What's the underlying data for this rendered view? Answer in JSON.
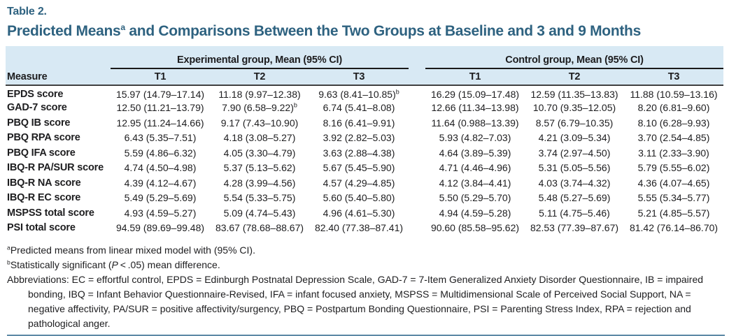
{
  "table_label": "Table 2.",
  "title": {
    "pre": "Predicted Means",
    "sup": "a",
    "post": " and Comparisons Between the Two Groups at Baseline and 3 and 9 Months"
  },
  "header": {
    "measure_label": "Measure",
    "groups": [
      {
        "label": "Experimental group, Mean (95% CI)"
      },
      {
        "label": "Control group, Mean (95% CI)"
      }
    ],
    "timepoints": [
      "T1",
      "T2",
      "T3",
      "T1",
      "T2",
      "T3"
    ]
  },
  "rows": [
    {
      "measure": "EPDS score",
      "values": [
        "15.97 (14.79–17.14)",
        "11.18 (9.97–12.38)",
        "9.63 (8.41–10.85)^b",
        "16.29 (15.09–17.48)",
        "12.59 (11.35–13.83)",
        "11.88 (10.59–13.16)"
      ]
    },
    {
      "measure": "GAD-7 score",
      "values": [
        "12.50 (11.21–13.79)",
        "7.90 (6.58–9.22)^b",
        "6.74 (5.41–8.08)",
        "12.66 (11.34–13.98)",
        "10.70 (9.35–12.05)",
        "8.20 (6.81–9.60)"
      ]
    },
    {
      "measure": "PBQ IB score",
      "values": [
        "12.95 (11.24–14.66)",
        "9.17 (7.43–10.90)",
        "8.16 (6.41–9.91)",
        "11.64 (0.988–13.39)",
        "8.57 (6.79–10.35)",
        "8.10 (6.28–9.93)"
      ]
    },
    {
      "measure": "PBQ RPA score",
      "values": [
        "6.43 (5.35–7.51)",
        "4.18 (3.08–5.27)",
        "3.92 (2.82–5.03)",
        "5.93 (4.82–7.03)",
        "4.21 (3.09–5.34)",
        "3.70 (2.54–4.85)"
      ]
    },
    {
      "measure": "PBQ IFA score",
      "values": [
        "5.59 (4.86–6.32)",
        "4.05 (3.30–4.79)",
        "3.63 (2.88–4.38)",
        "4.64 (3.89–5.39)",
        "3.74 (2.97–4.50)",
        "3.11 (2.33–3.90)"
      ]
    },
    {
      "measure": "IBQ-R PA/SUR score",
      "values": [
        "4.74 (4.50–4.98)",
        "5.37 (5.13–5.62)",
        "5.67 (5.45–5.90)",
        "4.71 (4.46–4.96)",
        "5.31 (5.05–5.56)",
        "5.79 (5.55–6.02)"
      ]
    },
    {
      "measure": "IBQ-R NA score",
      "values": [
        "4.39 (4.12–4.67)",
        "4.28 (3.99–4.56)",
        "4.57 (4.29–4.85)",
        "4.12 (3.84–4.41)",
        "4.03 (3.74–4.32)",
        "4.36 (4.07–4.65)"
      ]
    },
    {
      "measure": "IBQ-R EC score",
      "values": [
        "5.49 (5.29–5.69)",
        "5.54 (5.33–5.75)",
        "5.60 (5.40–5.80)",
        "5.50 (5.29–5.70)",
        "5.48 (5.27–5.69)",
        "5.55 (5.34–5.77)"
      ]
    },
    {
      "measure": "MSPSS total score",
      "values": [
        "4.93 (4.59–5.27)",
        "5.09 (4.74–5.43)",
        "4.96 (4.61–5.30)",
        "4.94 (4.59–5.28)",
        "5.11 (4.75–5.46)",
        "5.21 (4.85–5.57)"
      ]
    },
    {
      "measure": "PSI total score",
      "values": [
        "94.59 (89.69–99.48)",
        "83.67 (78.68–88.67)",
        "82.40 (77.38–87.41)",
        "90.60 (85.58–95.62)",
        "82.53 (77.39–87.67)",
        "81.42 (76.14–86.70)"
      ]
    }
  ],
  "footnotes": {
    "a": {
      "sup": "a",
      "text": "Predicted means from linear mixed model with (95% CI)."
    },
    "b": {
      "sup": "b",
      "pre": "Statistically significant (",
      "italic": "P",
      "post": " < .05) mean difference."
    },
    "abbreviations": "Abbreviations: EC = effortful control, EPDS = Edinburgh Postnatal Depression Scale, GAD-7 = 7-Item Generalized Anxiety Disorder Questionnaire, IB = impaired bonding, IBQ = Infant Behavior Questionnaire-Revised, IFA = infant focused anxiety, MSPSS = Multidimensional Scale of Perceived Social Support, NA = negative affectivity, PA/SUR = positive affectivity/surgency, PBQ = Postpartum Bonding Questionnaire, PSI = Parenting Stress Index, RPA = rejection and pathological anger."
  },
  "colors": {
    "accent_teal": "#2e6280",
    "header_background": "#d8e9f4",
    "header_rule_dark": "#404040",
    "group_underline": "#1a1a1a",
    "bottom_rule_blue": "#5d89a6",
    "body_text": "#1d1d1f"
  }
}
